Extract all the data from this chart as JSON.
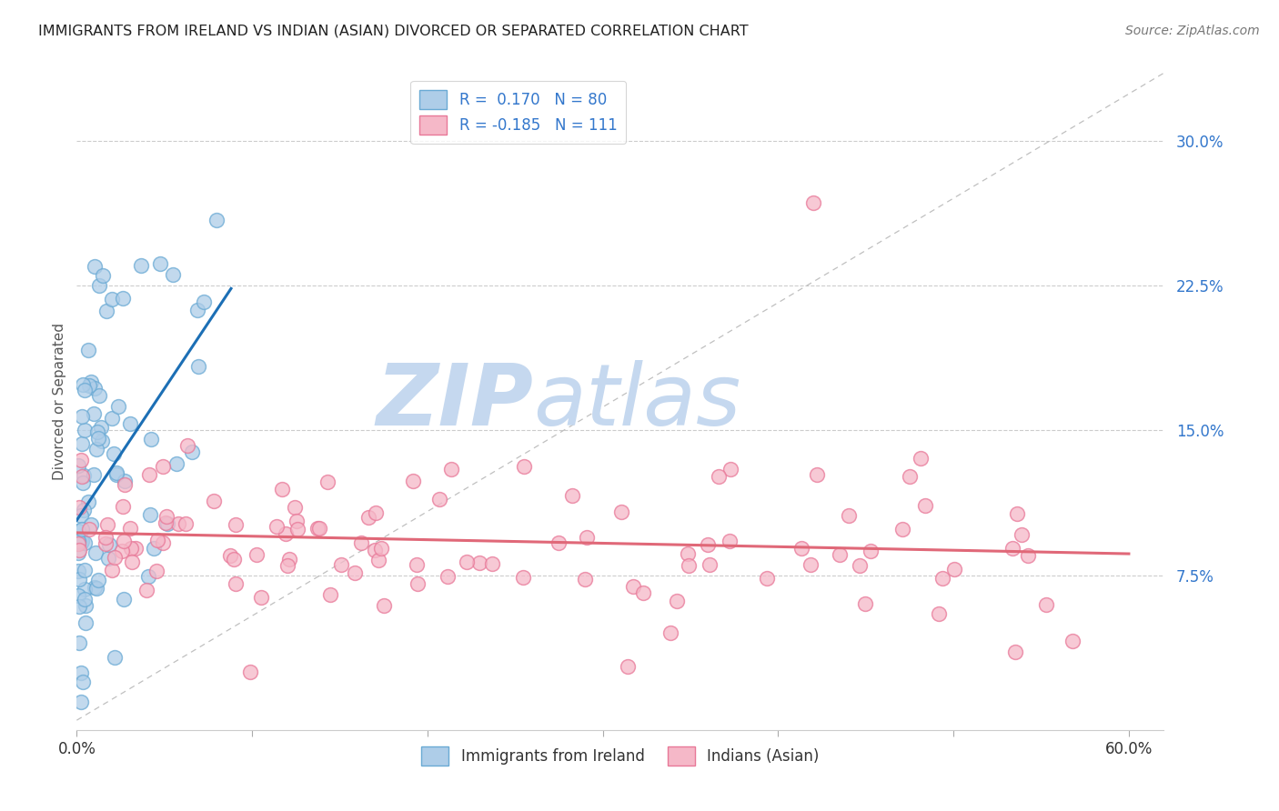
{
  "title": "IMMIGRANTS FROM IRELAND VS INDIAN (ASIAN) DIVORCED OR SEPARATED CORRELATION CHART",
  "source": "Source: ZipAtlas.com",
  "r_ireland": 0.17,
  "n_ireland": 80,
  "r_indian": -0.185,
  "n_indian": 111,
  "xlim": [
    0.0,
    0.62
  ],
  "ylim": [
    -0.005,
    0.335
  ],
  "ytick_positions": [
    0.075,
    0.15,
    0.225,
    0.3
  ],
  "ytick_labels": [
    "7.5%",
    "15.0%",
    "22.5%",
    "30.0%"
  ],
  "xtick_positions": [
    0.0,
    0.1,
    0.2,
    0.3,
    0.4,
    0.5,
    0.6
  ],
  "xtick_labels": [
    "0.0%",
    "",
    "",
    "",
    "",
    "",
    "60.0%"
  ],
  "ireland_scatter_face": "#aecde8",
  "ireland_scatter_edge": "#6aaad4",
  "indian_scatter_face": "#f5b8c8",
  "indian_scatter_edge": "#e87898",
  "regression_ireland_color": "#1c6fb5",
  "regression_indian_color": "#e06878",
  "diagonal_color": "#b0b0b0",
  "background_color": "#ffffff",
  "grid_color": "#cccccc",
  "watermark_zip": "ZIP",
  "watermark_atlas": "atlas",
  "watermark_color": "#ccdaee",
  "ylabel_color": "#555555",
  "ytick_color": "#3377cc",
  "xtick_color": "#333333",
  "title_color": "#222222",
  "source_color": "#777777"
}
